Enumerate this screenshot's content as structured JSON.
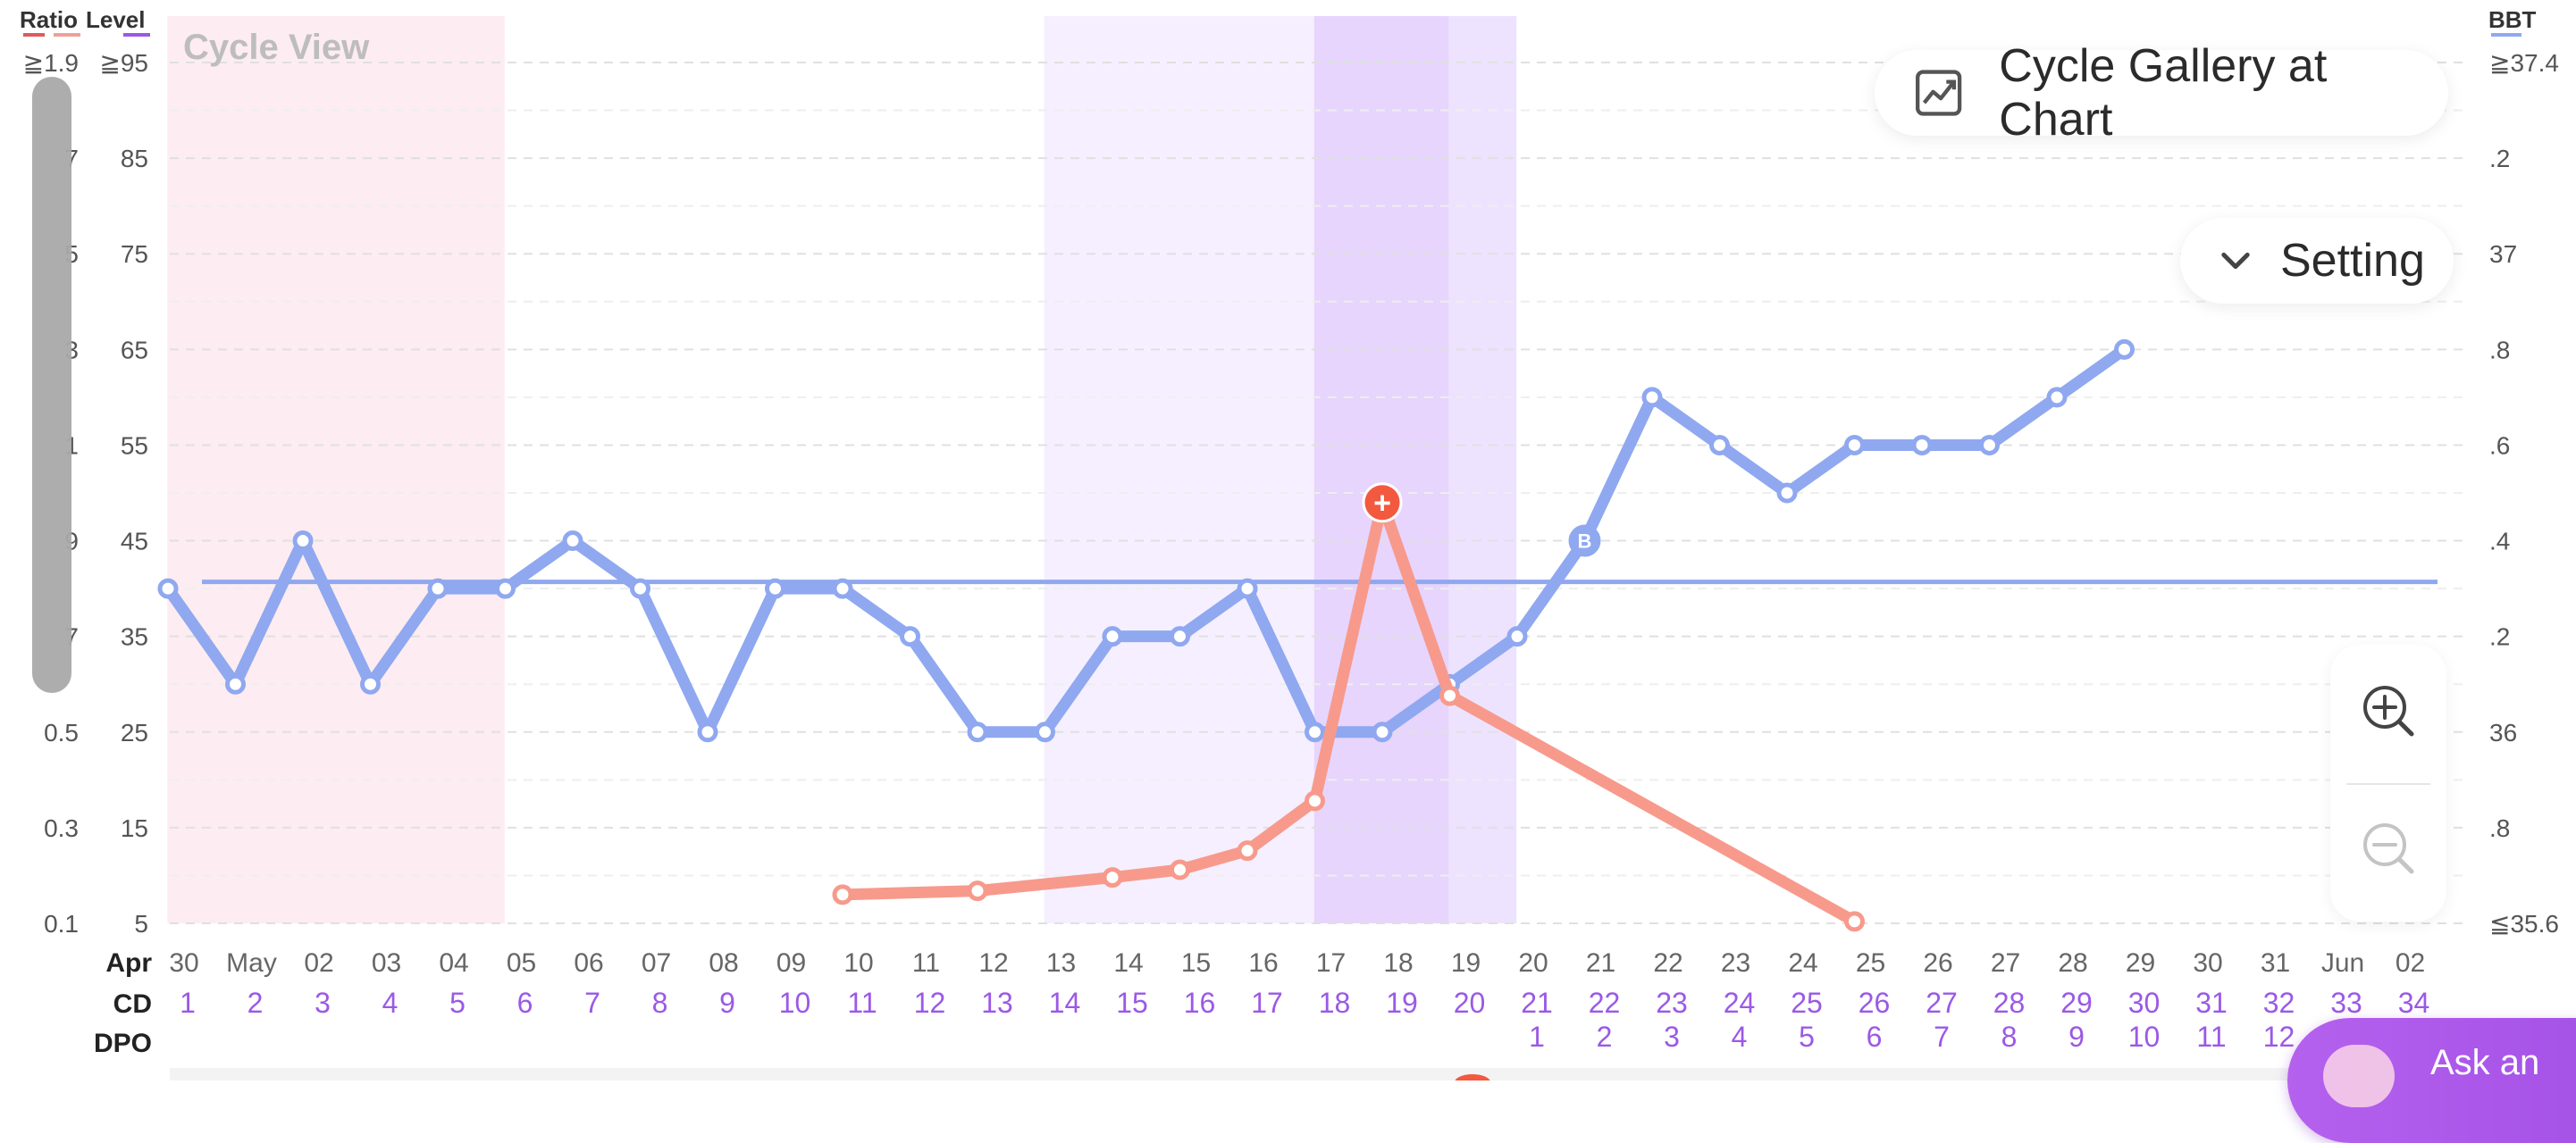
{
  "chart_data": {
    "type": "line",
    "title": "Cycle View",
    "header_labels": {
      "ratio": "Ratio",
      "level": "Level",
      "bbt": "BBT"
    },
    "header_colors": {
      "ratio": "#e15a5a",
      "level": "#9b59e6",
      "bbt": "#8fa8f0"
    },
    "left_axis_level": {
      "ticks": [
        "≧95",
        "85",
        "75",
        "65",
        "55",
        "45",
        "35",
        "25",
        "15",
        "5"
      ],
      "ylim": [
        5,
        95
      ]
    },
    "left_axis_ratio": {
      "ticks": [
        "≧1.9",
        "7",
        "5",
        "3",
        "1",
        "9",
        "7",
        "0.5",
        "0.3",
        "0.1"
      ]
    },
    "right_axis_bbt": {
      "ticks": [
        "≧37.4",
        ".2",
        "37",
        ".8",
        ".6",
        ".4",
        ".2",
        "36",
        ".8",
        "≦35.6"
      ]
    },
    "row_labels": {
      "date": "Apr",
      "cd": "CD",
      "dpo": "DPO"
    },
    "dates": [
      "30",
      "May",
      "02",
      "03",
      "04",
      "05",
      "06",
      "07",
      "08",
      "09",
      "10",
      "11",
      "12",
      "13",
      "14",
      "15",
      "16",
      "17",
      "18",
      "19",
      "20",
      "21",
      "22",
      "23",
      "24",
      "25",
      "26",
      "27",
      "28",
      "29",
      "30",
      "31",
      "Jun",
      "02"
    ],
    "cd": [
      "1",
      "2",
      "3",
      "4",
      "5",
      "6",
      "7",
      "8",
      "9",
      "10",
      "11",
      "12",
      "13",
      "14",
      "15",
      "16",
      "17",
      "18",
      "19",
      "20",
      "21",
      "22",
      "23",
      "24",
      "25",
      "26",
      "27",
      "28",
      "29",
      "30",
      "31",
      "32",
      "33",
      "34"
    ],
    "dpo": [
      "",
      "",
      "",
      "",
      "",
      "",
      "",
      "",
      "",
      "",
      "",
      "",
      "",
      "",
      "",
      "",
      "",
      "",
      "",
      "",
      "1",
      "2",
      "3",
      "4",
      "5",
      "6",
      "7",
      "8",
      "9",
      "10",
      "11",
      "12",
      "",
      ""
    ],
    "series": [
      {
        "name": "BBT",
        "color": "#8fa8f0",
        "values": [
          40,
          30,
          45,
          30,
          40,
          40,
          45,
          40,
          25,
          40,
          40,
          35,
          25,
          25,
          35,
          35,
          40,
          25,
          25,
          30,
          35,
          45,
          60,
          55,
          50,
          55,
          55,
          55,
          60,
          65,
          null,
          null,
          null,
          null
        ]
      },
      {
        "name": "Level",
        "color": "#f79a8c",
        "values": [
          null,
          null,
          null,
          null,
          null,
          null,
          null,
          null,
          null,
          null,
          8,
          null,
          8.4,
          null,
          9.8,
          10.6,
          12.6,
          17.8,
          49,
          28.8,
          null,
          null,
          null,
          null,
          null,
          5.2,
          null,
          null,
          null,
          null,
          null,
          null,
          null,
          null
        ]
      }
    ],
    "coverline": {
      "value": 40.7,
      "color": "#8fa8f0"
    },
    "peak_marker": {
      "index": 18,
      "symbol": "+",
      "color": "#f2593f"
    },
    "bbt_marker": {
      "index": 21,
      "symbol": "B"
    },
    "bands": [
      {
        "start": 0,
        "end": 4,
        "color": "#fdecf1",
        "meaning": "period"
      },
      {
        "start": 13,
        "end": 16,
        "color": "#f5efff",
        "meaning": "fertile"
      },
      {
        "start": 17,
        "end": 18,
        "color": "#e7d5fd",
        "meaning": "peak"
      },
      {
        "start": 19,
        "end": 19,
        "color": "#ede3fe",
        "meaning": "fertile"
      }
    ],
    "grid": true
  },
  "buttons": {
    "gallery_label": "Cycle Gallery at Chart",
    "gallery_icon": "chart-gallery-icon",
    "setting_label": "Setting",
    "setting_icon": "chevron-down-icon",
    "zoom_in_icon": "zoom-in-icon",
    "zoom_out_icon": "zoom-out-icon",
    "ask_label": "Ask an"
  },
  "colors": {
    "date_text": "#666666",
    "cd_text": "#9b59e6",
    "dpo_text": "#9b59e6"
  }
}
